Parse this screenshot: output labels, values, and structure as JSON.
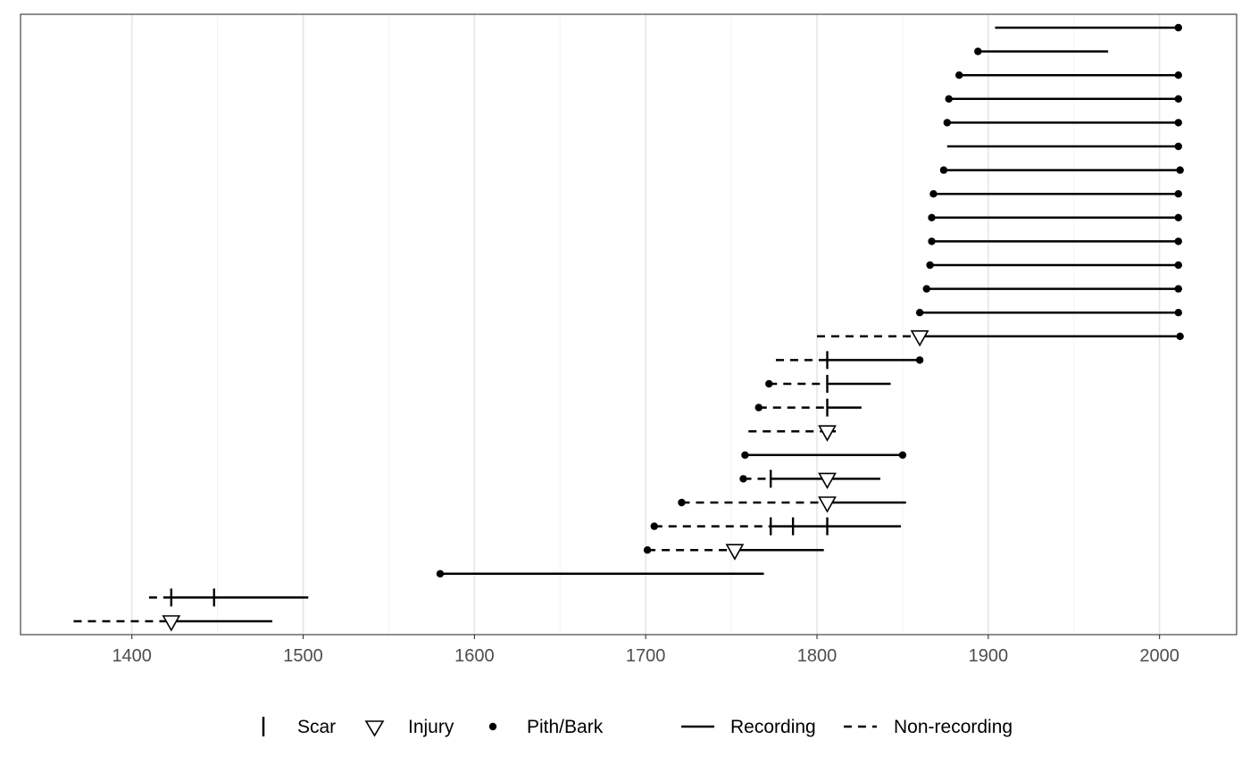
{
  "chart_data": {
    "type": "fire-history",
    "xlim": [
      1335,
      2045
    ],
    "x_ticks": [
      1400,
      1500,
      1600,
      1700,
      1800,
      1900,
      2000
    ],
    "x_minor": [
      1450,
      1550,
      1650,
      1750,
      1850,
      1950
    ],
    "grid": true,
    "legend_position": "bottom",
    "legend": {
      "symbols": [
        {
          "key": "scar",
          "label": "Scar"
        },
        {
          "key": "injury",
          "label": "Injury"
        },
        {
          "key": "pith_bark",
          "label": "Pith/Bark"
        }
      ],
      "lines": [
        {
          "key": "recording",
          "label": "Recording"
        },
        {
          "key": "non_recording",
          "label": "Non-recording"
        }
      ]
    },
    "series": [
      {
        "segments": [
          [
            1904,
            2011,
            "recording"
          ]
        ],
        "events": [
          {
            "year": 2011,
            "type": "pith_bark"
          }
        ]
      },
      {
        "segments": [
          [
            1894,
            1970,
            "recording"
          ]
        ],
        "events": [
          {
            "year": 1894,
            "type": "pith_bark"
          }
        ]
      },
      {
        "segments": [
          [
            1883,
            2011,
            "recording"
          ]
        ],
        "events": [
          {
            "year": 1883,
            "type": "pith_bark"
          },
          {
            "year": 2011,
            "type": "pith_bark"
          }
        ]
      },
      {
        "segments": [
          [
            1877,
            2011,
            "recording"
          ]
        ],
        "events": [
          {
            "year": 1877,
            "type": "pith_bark"
          },
          {
            "year": 2011,
            "type": "pith_bark"
          }
        ]
      },
      {
        "segments": [
          [
            1876,
            2011,
            "recording"
          ]
        ],
        "events": [
          {
            "year": 1876,
            "type": "pith_bark"
          },
          {
            "year": 2011,
            "type": "pith_bark"
          }
        ]
      },
      {
        "segments": [
          [
            1876,
            2011,
            "recording"
          ]
        ],
        "events": [
          {
            "year": 2011,
            "type": "pith_bark"
          }
        ]
      },
      {
        "segments": [
          [
            1874,
            2012,
            "recording"
          ]
        ],
        "events": [
          {
            "year": 1874,
            "type": "pith_bark"
          },
          {
            "year": 2012,
            "type": "pith_bark"
          }
        ]
      },
      {
        "segments": [
          [
            1868,
            2011,
            "recording"
          ]
        ],
        "events": [
          {
            "year": 1868,
            "type": "pith_bark"
          },
          {
            "year": 2011,
            "type": "pith_bark"
          }
        ]
      },
      {
        "segments": [
          [
            1867,
            2011,
            "recording"
          ]
        ],
        "events": [
          {
            "year": 1867,
            "type": "pith_bark"
          },
          {
            "year": 2011,
            "type": "pith_bark"
          }
        ]
      },
      {
        "segments": [
          [
            1867,
            2011,
            "recording"
          ]
        ],
        "events": [
          {
            "year": 1867,
            "type": "pith_bark"
          },
          {
            "year": 2011,
            "type": "pith_bark"
          }
        ]
      },
      {
        "segments": [
          [
            1866,
            2011,
            "recording"
          ]
        ],
        "events": [
          {
            "year": 1866,
            "type": "pith_bark"
          },
          {
            "year": 2011,
            "type": "pith_bark"
          }
        ]
      },
      {
        "segments": [
          [
            1864,
            2011,
            "recording"
          ]
        ],
        "events": [
          {
            "year": 1864,
            "type": "pith_bark"
          },
          {
            "year": 2011,
            "type": "pith_bark"
          }
        ]
      },
      {
        "segments": [
          [
            1860,
            2011,
            "recording"
          ]
        ],
        "events": [
          {
            "year": 1860,
            "type": "pith_bark"
          },
          {
            "year": 2011,
            "type": "pith_bark"
          }
        ]
      },
      {
        "segments": [
          [
            1800,
            1860,
            "non_recording"
          ],
          [
            1860,
            2012,
            "recording"
          ]
        ],
        "events": [
          {
            "year": 1860,
            "type": "injury"
          },
          {
            "year": 2012,
            "type": "pith_bark"
          }
        ]
      },
      {
        "segments": [
          [
            1776,
            1806,
            "non_recording"
          ],
          [
            1806,
            1860,
            "recording"
          ]
        ],
        "events": [
          {
            "year": 1806,
            "type": "scar"
          },
          {
            "year": 1860,
            "type": "pith_bark"
          }
        ]
      },
      {
        "segments": [
          [
            1772,
            1806,
            "non_recording"
          ],
          [
            1806,
            1843,
            "recording"
          ]
        ],
        "events": [
          {
            "year": 1772,
            "type": "pith_bark"
          },
          {
            "year": 1806,
            "type": "scar"
          }
        ]
      },
      {
        "segments": [
          [
            1766,
            1806,
            "non_recording"
          ],
          [
            1806,
            1826,
            "recording"
          ]
        ],
        "events": [
          {
            "year": 1766,
            "type": "pith_bark"
          },
          {
            "year": 1806,
            "type": "scar"
          }
        ]
      },
      {
        "segments": [
          [
            1760,
            1806,
            "non_recording"
          ],
          [
            1806,
            1811,
            "recording"
          ]
        ],
        "events": [
          {
            "year": 1806,
            "type": "injury"
          }
        ]
      },
      {
        "segments": [
          [
            1758,
            1850,
            "recording"
          ]
        ],
        "events": [
          {
            "year": 1758,
            "type": "pith_bark"
          },
          {
            "year": 1850,
            "type": "pith_bark"
          }
        ]
      },
      {
        "segments": [
          [
            1757,
            1773,
            "non_recording"
          ],
          [
            1773,
            1837,
            "recording"
          ]
        ],
        "events": [
          {
            "year": 1757,
            "type": "pith_bark"
          },
          {
            "year": 1773,
            "type": "scar"
          },
          {
            "year": 1806,
            "type": "injury"
          }
        ]
      },
      {
        "segments": [
          [
            1721,
            1806,
            "non_recording"
          ],
          [
            1806,
            1852,
            "recording"
          ]
        ],
        "events": [
          {
            "year": 1721,
            "type": "pith_bark"
          },
          {
            "year": 1806,
            "type": "injury"
          }
        ]
      },
      {
        "segments": [
          [
            1705,
            1773,
            "non_recording"
          ],
          [
            1773,
            1849,
            "recording"
          ]
        ],
        "events": [
          {
            "year": 1705,
            "type": "pith_bark"
          },
          {
            "year": 1773,
            "type": "scar"
          },
          {
            "year": 1786,
            "type": "scar"
          },
          {
            "year": 1806,
            "type": "scar"
          }
        ]
      },
      {
        "segments": [
          [
            1701,
            1752,
            "non_recording"
          ],
          [
            1752,
            1804,
            "recording"
          ]
        ],
        "events": [
          {
            "year": 1701,
            "type": "pith_bark"
          },
          {
            "year": 1752,
            "type": "injury"
          }
        ]
      },
      {
        "segments": [
          [
            1580,
            1769,
            "recording"
          ]
        ],
        "events": [
          {
            "year": 1580,
            "type": "pith_bark"
          }
        ]
      },
      {
        "segments": [
          [
            1410,
            1423,
            "non_recording"
          ],
          [
            1423,
            1503,
            "recording"
          ]
        ],
        "events": [
          {
            "year": 1423,
            "type": "scar"
          },
          {
            "year": 1448,
            "type": "scar"
          }
        ]
      },
      {
        "segments": [
          [
            1366,
            1423,
            "non_recording"
          ],
          [
            1423,
            1482,
            "recording"
          ]
        ],
        "events": [
          {
            "year": 1423,
            "type": "injury"
          }
        ]
      }
    ]
  }
}
